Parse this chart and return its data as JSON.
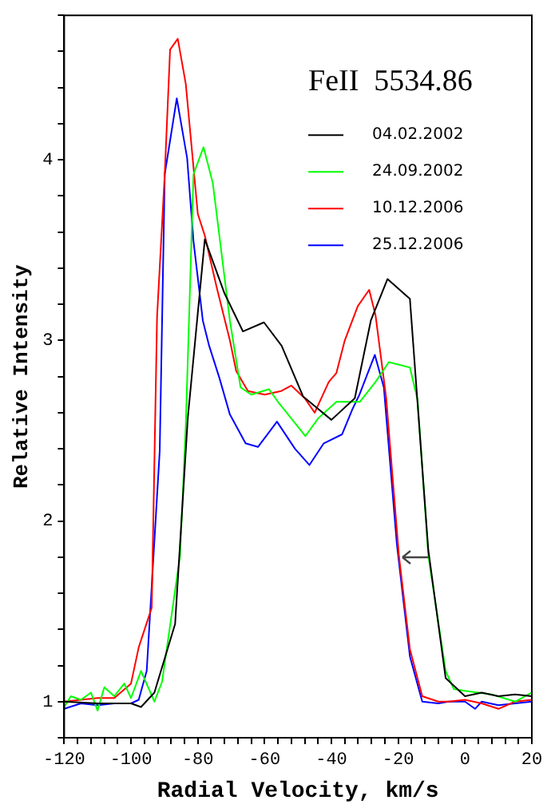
{
  "chart_data": {
    "type": "line",
    "xlabel": "Radial Velocity, km/s",
    "ylabel": "Relative Intensity",
    "annotations": [
      {
        "text": "FeII  5534.86"
      }
    ],
    "xlim": [
      -120,
      20
    ],
    "ylim": [
      0.8,
      4.8
    ],
    "xticks": [
      -120,
      {
        "value": -116,
        "label": null
      },
      {
        "value": -112,
        "label": null
      },
      {
        "value": -108,
        "label": null
      },
      {
        "value": -104,
        "label": null
      },
      -100,
      {
        "value": -96,
        "label": null
      },
      {
        "value": -92,
        "label": null
      },
      {
        "value": -88,
        "label": null
      },
      {
        "value": -84,
        "label": null
      },
      -80,
      {
        "value": -76,
        "label": null
      },
      {
        "value": -72,
        "label": null
      },
      {
        "value": -68,
        "label": null
      },
      {
        "value": -64,
        "label": null
      },
      -60,
      {
        "value": -56,
        "label": null
      },
      {
        "value": -52,
        "label": null
      },
      {
        "value": -48,
        "label": null
      },
      {
        "value": -44,
        "label": null
      },
      -40,
      {
        "value": -36,
        "label": null
      },
      {
        "value": -32,
        "label": null
      },
      {
        "value": -28,
        "label": null
      },
      {
        "value": -24,
        "label": null
      },
      -20,
      {
        "value": -16,
        "label": null
      },
      {
        "value": -12,
        "label": null
      },
      {
        "value": -8,
        "label": null
      },
      {
        "value": -4,
        "label": null
      },
      0,
      {
        "value": 4,
        "label": null
      },
      {
        "value": 8,
        "label": null
      },
      {
        "value": 12,
        "label": null
      },
      {
        "value": 16,
        "label": null
      },
      20
    ],
    "yticks": [
      {
        "value": 0.8,
        "label": null
      },
      1,
      {
        "value": 1.2,
        "label": null
      },
      {
        "value": 1.4,
        "label": null
      },
      {
        "value": 1.6,
        "label": null
      },
      {
        "value": 1.8,
        "label": null
      },
      2,
      {
        "value": 2.2,
        "label": null
      },
      {
        "value": 2.4,
        "label": null
      },
      {
        "value": 2.6,
        "label": null
      },
      {
        "value": 2.8,
        "label": null
      },
      3,
      {
        "value": 3.2,
        "label": null
      },
      {
        "value": 3.4,
        "label": null
      },
      {
        "value": 3.6,
        "label": null
      },
      {
        "value": 3.8,
        "label": null
      },
      4,
      {
        "value": 4.2,
        "label": null
      },
      {
        "value": 4.4,
        "label": null
      },
      {
        "value": 4.6,
        "label": null
      },
      {
        "value": 4.8,
        "label": null
      }
    ],
    "grid": false,
    "legend": "top right",
    "marker": "none",
    "line_style": "solid",
    "series": [
      {
        "name": "04.02.2002",
        "color": "#000000",
        "x": [
          -120,
          -110,
          -100,
          -97,
          -93,
          -86.8,
          -83,
          -77.9,
          -72,
          -66.5,
          -60.2,
          -54.9,
          -48.5,
          -40,
          -33,
          -28.2,
          -23.2,
          -16.5,
          -14.2,
          -11,
          -5.8,
          0,
          5,
          10,
          15,
          20
        ],
        "values": [
          1.0,
          0.99,
          0.99,
          0.97,
          1.05,
          1.43,
          2.57,
          3.56,
          3.26,
          3.05,
          3.1,
          2.97,
          2.69,
          2.56,
          2.68,
          3.11,
          3.34,
          3.23,
          2.65,
          1.84,
          1.13,
          1.03,
          1.05,
          1.03,
          1.04,
          1.03
        ]
      },
      {
        "name": "24.09.2002",
        "color": "#00ff00",
        "x": [
          -120,
          -118,
          -115,
          -112,
          -110,
          -108,
          -105,
          -102,
          -100,
          -97,
          -93,
          -90.7,
          -85.3,
          -83.6,
          -81.3,
          -78.3,
          -75.5,
          -70.4,
          -67.2,
          -64,
          -58.7,
          -56,
          -47.8,
          -43.9,
          -38.5,
          -31.5,
          -26.8,
          -22.8,
          -16.5,
          -14.2,
          -11,
          -5.8,
          -3.4,
          0,
          8,
          15,
          20
        ],
        "values": [
          0.97,
          1.03,
          1.01,
          1.05,
          0.95,
          1.08,
          1.03,
          1.1,
          1.02,
          1.17,
          1.0,
          1.11,
          1.81,
          2.53,
          3.92,
          4.07,
          3.87,
          3.11,
          2.74,
          2.7,
          2.73,
          2.66,
          2.47,
          2.57,
          2.66,
          2.66,
          2.77,
          2.88,
          2.85,
          2.67,
          1.81,
          1.17,
          1.07,
          1.06,
          1.04,
          1.0,
          1.05
        ]
      },
      {
        "name": "10.12.2006",
        "color": "#ff0000",
        "x": [
          -120,
          -110,
          -105,
          -100,
          -97.7,
          -93.8,
          -92.2,
          -89.9,
          -88.3,
          -86,
          -83.6,
          -80,
          -77.9,
          -74.3,
          -70.4,
          -68.5,
          -65,
          -60,
          -55,
          -52,
          -48,
          -45,
          -40.8,
          -38.5,
          -36,
          -32.1,
          -28.7,
          -26.8,
          -23.6,
          -19.8,
          -16.5,
          -12.8,
          -8,
          -5,
          0,
          5,
          10,
          15,
          20
        ],
        "values": [
          1.0,
          1.02,
          1.02,
          1.1,
          1.3,
          1.52,
          3.13,
          3.92,
          4.61,
          4.67,
          4.42,
          3.7,
          3.58,
          3.29,
          3.0,
          2.83,
          2.72,
          2.7,
          2.72,
          2.75,
          2.68,
          2.6,
          2.77,
          2.82,
          3.0,
          3.19,
          3.28,
          3.14,
          2.68,
          1.81,
          1.29,
          1.03,
          1.0,
          1.0,
          1.01,
          0.99,
          0.96,
          1.0,
          1.01
        ]
      },
      {
        "name": "25.12.2006",
        "color": "#0000ff",
        "x": [
          -120,
          -115,
          -110,
          -105,
          -100,
          -97.7,
          -95.3,
          -91.4,
          -89.9,
          -86.3,
          -83.2,
          -81.3,
          -78.5,
          -76.6,
          -73.5,
          -70.4,
          -65.7,
          -62,
          -56.3,
          -50.9,
          -46.6,
          -42.3,
          -36.8,
          -33.7,
          -31.6,
          -27,
          -24.3,
          -20.4,
          -16.5,
          -12.8,
          -8,
          -5,
          0,
          3,
          5,
          10,
          15,
          20
        ],
        "values": [
          0.96,
          0.99,
          0.98,
          0.99,
          0.99,
          1.01,
          1.17,
          2.39,
          3.92,
          4.34,
          4.01,
          3.55,
          3.11,
          2.97,
          2.79,
          2.59,
          2.43,
          2.41,
          2.55,
          2.4,
          2.31,
          2.43,
          2.48,
          2.62,
          2.7,
          2.92,
          2.74,
          1.87,
          1.25,
          1.0,
          0.99,
          1.0,
          1.0,
          0.96,
          1.0,
          0.98,
          0.99,
          1.0
        ]
      }
    ]
  }
}
